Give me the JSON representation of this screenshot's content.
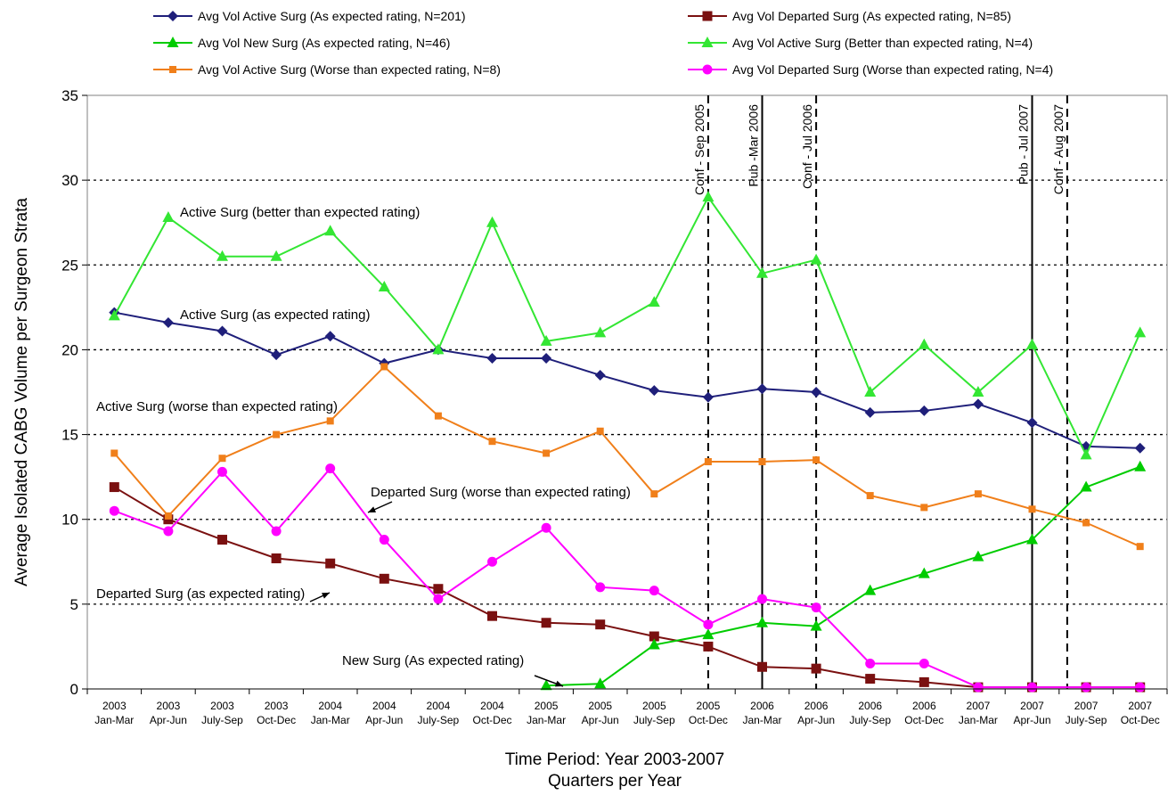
{
  "chart_data": {
    "type": "line",
    "xlabel_line1": "Time Period: Year 2003-2007",
    "xlabel_line2": "Quarters per Year",
    "ylabel": "Average Isolated CABG Volume per Surgeon  Strata",
    "ylim": [
      0,
      35
    ],
    "yticks": [
      0,
      5,
      10,
      15,
      20,
      25,
      30,
      35
    ],
    "grid": "horizontal dotted",
    "legend_position": "top",
    "x_years": [
      "2003",
      "2003",
      "2003",
      "2003",
      "2004",
      "2004",
      "2004",
      "2004",
      "2005",
      "2005",
      "2005",
      "2005",
      "2006",
      "2006",
      "2006",
      "2006",
      "2007",
      "2007",
      "2007",
      "2007"
    ],
    "x_quarters": [
      "Jan-Mar",
      "Apr-Jun",
      "July-Sep",
      "Oct-Dec",
      "Jan-Mar",
      "Apr-Jun",
      "July-Sep",
      "Oct-Dec",
      "Jan-Mar",
      "Apr-Jun",
      "July-Sep",
      "Oct-Dec",
      "Jan-Mar",
      "Apr-Jun",
      "July-Sep",
      "Oct-Dec",
      "Jan-Mar",
      "Apr-Jun",
      "July-Sep",
      "Oct-Dec"
    ],
    "series": [
      {
        "name": "Avg Vol Active Surg (As expected rating, N=201)",
        "color": "#1f1f7a",
        "marker": "diamond",
        "values": [
          22.2,
          21.6,
          21.1,
          19.7,
          20.8,
          19.2,
          20.0,
          19.5,
          19.5,
          18.5,
          17.6,
          17.2,
          17.7,
          17.5,
          16.3,
          16.4,
          16.8,
          15.7,
          14.3,
          14.2
        ]
      },
      {
        "name": "Avg Vol Departed Surg (As expected rating, N=85)",
        "color": "#7a1010",
        "marker": "square",
        "values": [
          11.9,
          10.0,
          8.8,
          7.7,
          7.4,
          6.5,
          5.9,
          4.3,
          3.9,
          3.8,
          3.1,
          2.5,
          1.3,
          1.2,
          0.6,
          0.4,
          0.1,
          0.1,
          0.1,
          0.1
        ]
      },
      {
        "name": "Avg Vol New Surg (As expected rating, N=46)",
        "color": "#00cc00",
        "marker": "triangle",
        "values": [
          null,
          null,
          null,
          null,
          null,
          null,
          null,
          null,
          0.2,
          0.3,
          2.6,
          3.2,
          3.9,
          3.7,
          5.8,
          6.8,
          7.8,
          8.8,
          11.9,
          13.1
        ]
      },
      {
        "name": "Avg Vol Active Surg (Better than expected rating, N=4)",
        "color": "#33e633",
        "marker": "triangle",
        "values": [
          22.0,
          27.8,
          25.5,
          25.5,
          27.0,
          23.7,
          20.0,
          27.5,
          20.5,
          21.0,
          22.8,
          29.0,
          24.5,
          25.3,
          17.5,
          20.3,
          17.5,
          20.3,
          13.8,
          21.0
        ]
      },
      {
        "name": "Avg Vol Active Surg (Worse than expected rating, N=8)",
        "color": "#f07f1a",
        "marker": "square-small",
        "values": [
          13.9,
          10.2,
          13.6,
          15.0,
          15.8,
          19.0,
          16.1,
          14.6,
          13.9,
          15.2,
          11.5,
          13.4,
          13.4,
          13.5,
          11.4,
          10.7,
          11.5,
          10.6,
          9.8,
          8.4
        ]
      },
      {
        "name": "Avg Vol Departed Surg (Worse than expected rating, N=4)",
        "color": "#ff00ff",
        "marker": "circle",
        "values": [
          10.5,
          9.3,
          12.8,
          9.3,
          13.0,
          8.8,
          5.3,
          7.5,
          9.5,
          6.0,
          5.8,
          3.8,
          5.3,
          4.8,
          1.5,
          1.5,
          0.1,
          0.1,
          0.1,
          0.1
        ]
      }
    ],
    "events": [
      {
        "label": "Conf - Sep 2005",
        "style": "dashed",
        "x": 11.5
      },
      {
        "label": "Pub -Mar 2006",
        "style": "solid",
        "x": 12.5
      },
      {
        "label": "Conf - Jul 2006",
        "style": "dashed",
        "x": 13.5
      },
      {
        "label": "Pub - Jul 2007",
        "style": "solid",
        "x": 17.5
      },
      {
        "label": "Conf -  Aug 2007",
        "style": "dashed",
        "x": 18.15
      }
    ],
    "annotations": [
      {
        "text": "Active Surg (better than expected rating)"
      },
      {
        "text": "Active Surg (as expected rating)"
      },
      {
        "text": "Active Surg (worse than expected rating)"
      },
      {
        "text": "Departed Surg (worse than expected rating)"
      },
      {
        "text": "Departed Surg (as expected rating)"
      },
      {
        "text": "New Surg (As expected rating)"
      }
    ]
  }
}
